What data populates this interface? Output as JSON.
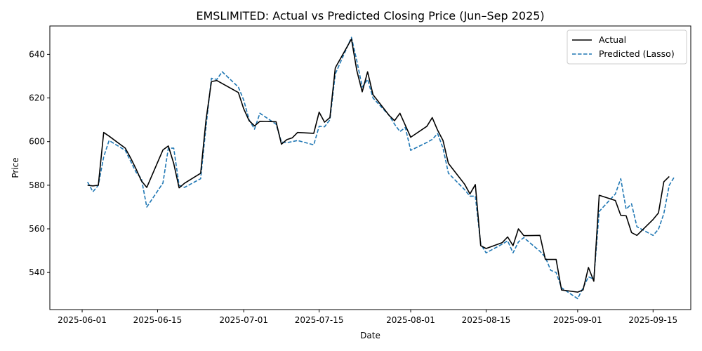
{
  "chart_data": {
    "type": "line",
    "title": "EMSLIMITED: Actual vs Predicted Closing Price (Jun–Sep 2025)",
    "xlabel": "Date",
    "ylabel": "Price",
    "xlim": [
      "2025-05-26",
      "2025-09-22"
    ],
    "ylim": [
      523,
      653
    ],
    "x_ticks": [
      "2025-06-01",
      "2025-06-15",
      "2025-07-01",
      "2025-07-15",
      "2025-08-01",
      "2025-08-15",
      "2025-09-01",
      "2025-09-15"
    ],
    "y_ticks": [
      540,
      560,
      580,
      600,
      620,
      640
    ],
    "grid": false,
    "legend": "top-right",
    "colors": {
      "Actual": "#000000",
      "Predicted (Lasso)": "#1f77b4"
    },
    "series": [
      {
        "name": "Actual",
        "style": "solid",
        "points": [
          [
            "2025-06-02",
            580.0
          ],
          [
            "2025-06-03",
            579.7
          ],
          [
            "2025-06-04",
            580.0
          ],
          [
            "2025-06-05",
            604.2
          ],
          [
            "2025-06-06",
            602.5
          ],
          [
            "2025-06-09",
            597.0
          ],
          [
            "2025-06-10",
            592.5
          ],
          [
            "2025-06-11",
            587.5
          ],
          [
            "2025-06-12",
            582.0
          ],
          [
            "2025-06-13",
            579.0
          ],
          [
            "2025-06-16",
            596.2
          ],
          [
            "2025-06-17",
            598.0
          ],
          [
            "2025-06-18",
            590.0
          ],
          [
            "2025-06-19",
            578.8
          ],
          [
            "2025-06-20",
            580.9
          ],
          [
            "2025-06-23",
            585.5
          ],
          [
            "2025-06-24",
            610.0
          ],
          [
            "2025-06-25",
            627.5
          ],
          [
            "2025-06-26",
            628.0
          ],
          [
            "2025-06-30",
            622.5
          ],
          [
            "2025-07-01",
            615.0
          ],
          [
            "2025-07-02",
            609.6
          ],
          [
            "2025-07-03",
            607.2
          ],
          [
            "2025-07-04",
            609.3
          ],
          [
            "2025-07-07",
            609.1
          ],
          [
            "2025-07-08",
            598.8
          ],
          [
            "2025-07-09",
            600.9
          ],
          [
            "2025-07-10",
            601.7
          ],
          [
            "2025-07-11",
            604.2
          ],
          [
            "2025-07-14",
            603.8
          ],
          [
            "2025-07-15",
            613.5
          ],
          [
            "2025-07-16",
            608.9
          ],
          [
            "2025-07-17",
            611.0
          ],
          [
            "2025-07-18",
            633.8
          ],
          [
            "2025-07-21",
            647.0
          ],
          [
            "2025-07-22",
            632.5
          ],
          [
            "2025-07-23",
            622.8
          ],
          [
            "2025-07-24",
            632.0
          ],
          [
            "2025-07-25",
            621.5
          ],
          [
            "2025-07-28",
            612.0
          ],
          [
            "2025-07-29",
            609.6
          ],
          [
            "2025-07-30",
            613.0
          ],
          [
            "2025-07-31",
            607.5
          ],
          [
            "2025-08-01",
            602.0
          ],
          [
            "2025-08-04",
            607.0
          ],
          [
            "2025-08-05",
            611.0
          ],
          [
            "2025-08-06",
            605.2
          ],
          [
            "2025-08-07",
            600.5
          ],
          [
            "2025-08-08",
            590.0
          ],
          [
            "2025-08-11",
            580.5
          ],
          [
            "2025-08-12",
            576.0
          ],
          [
            "2025-08-13",
            580.3
          ],
          [
            "2025-08-14",
            552.3
          ],
          [
            "2025-08-15",
            551.0
          ],
          [
            "2025-08-18",
            553.7
          ],
          [
            "2025-08-19",
            556.3
          ],
          [
            "2025-08-20",
            552.3
          ],
          [
            "2025-08-21",
            560.0
          ],
          [
            "2025-08-22",
            556.9
          ],
          [
            "2025-08-25",
            557.0
          ],
          [
            "2025-08-26",
            546.0
          ],
          [
            "2025-08-27",
            546.0
          ],
          [
            "2025-08-28",
            546.0
          ],
          [
            "2025-08-29",
            532.0
          ],
          [
            "2025-09-01",
            531.0
          ],
          [
            "2025-09-02",
            532.0
          ],
          [
            "2025-09-03",
            542.3
          ],
          [
            "2025-09-04",
            536.0
          ],
          [
            "2025-09-05",
            575.4
          ],
          [
            "2025-09-08",
            573.0
          ],
          [
            "2025-09-09",
            566.2
          ],
          [
            "2025-09-10",
            566.0
          ],
          [
            "2025-09-11",
            558.3
          ],
          [
            "2025-09-12",
            557.0
          ],
          [
            "2025-09-15",
            564.3
          ],
          [
            "2025-09-16",
            567.3
          ],
          [
            "2025-09-17",
            581.6
          ],
          [
            "2025-09-18",
            584.0
          ]
        ]
      },
      {
        "name": "Predicted (Lasso)",
        "style": "dashed",
        "points": [
          [
            "2025-06-02",
            581.5
          ],
          [
            "2025-06-03",
            577.0
          ],
          [
            "2025-06-04",
            580.0
          ],
          [
            "2025-06-05",
            593.0
          ],
          [
            "2025-06-06",
            600.5
          ],
          [
            "2025-06-09",
            596.0
          ],
          [
            "2025-06-10",
            591.0
          ],
          [
            "2025-06-11",
            586.0
          ],
          [
            "2025-06-12",
            583.0
          ],
          [
            "2025-06-13",
            570.0
          ],
          [
            "2025-06-16",
            581.0
          ],
          [
            "2025-06-17",
            597.0
          ],
          [
            "2025-06-18",
            597.0
          ],
          [
            "2025-06-19",
            580.0
          ],
          [
            "2025-06-20",
            579.0
          ],
          [
            "2025-06-23",
            583.0
          ],
          [
            "2025-06-24",
            607.0
          ],
          [
            "2025-06-25",
            629.0
          ],
          [
            "2025-06-26",
            628.5
          ],
          [
            "2025-06-27",
            632.0
          ],
          [
            "2025-06-30",
            625.0
          ],
          [
            "2025-07-01",
            619.0
          ],
          [
            "2025-07-02",
            610.0
          ],
          [
            "2025-07-03",
            605.7
          ],
          [
            "2025-07-04",
            613.0
          ],
          [
            "2025-07-07",
            608.0
          ],
          [
            "2025-07-08",
            599.8
          ],
          [
            "2025-07-09",
            599.5
          ],
          [
            "2025-07-11",
            600.5
          ],
          [
            "2025-07-14",
            598.5
          ],
          [
            "2025-07-15",
            607.0
          ],
          [
            "2025-07-16",
            606.8
          ],
          [
            "2025-07-17",
            610.0
          ],
          [
            "2025-07-18",
            631.0
          ],
          [
            "2025-07-21",
            647.8
          ],
          [
            "2025-07-22",
            637.0
          ],
          [
            "2025-07-23",
            625.0
          ],
          [
            "2025-07-24",
            628.5
          ],
          [
            "2025-07-25",
            620.0
          ],
          [
            "2025-07-28",
            612.0
          ],
          [
            "2025-07-29",
            608.0
          ],
          [
            "2025-07-30",
            604.6
          ],
          [
            "2025-07-31",
            606.5
          ],
          [
            "2025-08-01",
            596.0
          ],
          [
            "2025-08-04",
            599.6
          ],
          [
            "2025-08-05",
            601.0
          ],
          [
            "2025-08-06",
            603.7
          ],
          [
            "2025-08-07",
            597.0
          ],
          [
            "2025-08-08",
            585.5
          ],
          [
            "2025-08-11",
            578.0
          ],
          [
            "2025-08-12",
            575.0
          ],
          [
            "2025-08-13",
            575.0
          ],
          [
            "2025-08-14",
            553.0
          ],
          [
            "2025-08-15",
            549.0
          ],
          [
            "2025-08-18",
            553.0
          ],
          [
            "2025-08-19",
            554.5
          ],
          [
            "2025-08-20",
            549.0
          ],
          [
            "2025-08-21",
            554.0
          ],
          [
            "2025-08-22",
            556.0
          ],
          [
            "2025-08-25",
            549.7
          ],
          [
            "2025-08-26",
            547.0
          ],
          [
            "2025-08-27",
            541.0
          ],
          [
            "2025-08-28",
            540.0
          ],
          [
            "2025-08-29",
            533.0
          ],
          [
            "2025-09-01",
            528.0
          ],
          [
            "2025-09-02",
            533.0
          ],
          [
            "2025-09-03",
            538.0
          ],
          [
            "2025-09-04",
            537.0
          ],
          [
            "2025-09-05",
            568.0
          ],
          [
            "2025-09-08",
            576.0
          ],
          [
            "2025-09-09",
            583.0
          ],
          [
            "2025-09-10",
            569.0
          ],
          [
            "2025-09-11",
            571.5
          ],
          [
            "2025-09-12",
            561.0
          ],
          [
            "2025-09-15",
            557.0
          ],
          [
            "2025-09-16",
            559.8
          ],
          [
            "2025-09-17",
            567.0
          ],
          [
            "2025-09-18",
            580.0
          ],
          [
            "2025-09-19",
            584.0
          ]
        ]
      }
    ]
  }
}
